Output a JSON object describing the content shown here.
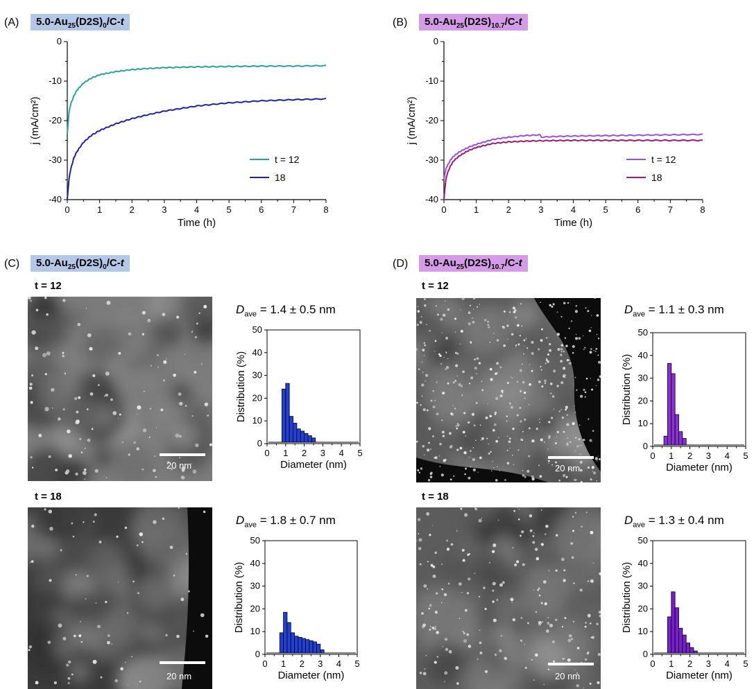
{
  "panels": [
    {
      "letter": "(A)",
      "tag": {
        "prefix": "5.0-Au",
        "sub1": "25",
        "mid": "(D2S)",
        "sub2": "0",
        "suffix": "/C-",
        "ital": "t"
      }
    },
    {
      "letter": "(B)",
      "tag": {
        "prefix": "5.0-Au",
        "sub1": "25",
        "mid": "(D2S)",
        "sub2": "10.7",
        "suffix": "/C-",
        "ital": "t"
      }
    },
    {
      "letter": "(C)",
      "tag": {
        "prefix": "5.0-Au",
        "sub1": "25",
        "mid": "(D2S)",
        "sub2": "0",
        "suffix": "/C-",
        "ital": "t"
      }
    },
    {
      "letter": "(D)",
      "tag": {
        "prefix": "5.0-Au",
        "sub1": "25",
        "mid": "(D2S)",
        "sub2": "10.7",
        "suffix": "/C-",
        "ital": "t"
      }
    }
  ],
  "tem": {
    "t_labels": [
      "t = 12",
      "t = 18"
    ],
    "scale_bar": "20 nm",
    "dave_label": "D",
    "dave_sub": "ave",
    "dave_values": [
      "= 1.4 ± 0.5 nm",
      "= 1.8 ± 0.7 nm",
      "= 1.1 ± 0.3 nm",
      "= 1.3 ± 0.4 nm"
    ]
  },
  "chart_data": [
    {
      "id": "A",
      "type": "line",
      "xlabel": "Time (h)",
      "ylabel": "j (mA/cm²)",
      "xlim": [
        0,
        8
      ],
      "ylim": [
        -40,
        0
      ],
      "xticks": [
        0,
        1,
        2,
        3,
        4,
        5,
        6,
        7,
        8
      ],
      "yticks": [
        0,
        -10,
        -20,
        -30,
        -40
      ],
      "legend_position": "bottom-right",
      "series": [
        {
          "name": "t = 12",
          "color": "#2aa198",
          "x": [
            0,
            0.05,
            0.1,
            0.2,
            0.3,
            0.5,
            0.75,
            1,
            1.5,
            2,
            2.5,
            3,
            4,
            5,
            6,
            7,
            8
          ],
          "y": [
            -23.5,
            -18,
            -16,
            -13.8,
            -12.3,
            -10.5,
            -9.2,
            -8.4,
            -7.6,
            -7.1,
            -6.8,
            -6.6,
            -6.4,
            -6.3,
            -6.2,
            -6.2,
            -6.1
          ]
        },
        {
          "name": "18",
          "color": "#1c22a0",
          "x": [
            0,
            0.05,
            0.1,
            0.2,
            0.3,
            0.5,
            0.75,
            1,
            1.5,
            2,
            2.5,
            3,
            4,
            5,
            6,
            7,
            8
          ],
          "y": [
            -40,
            -35,
            -32.5,
            -29.5,
            -27.8,
            -25.5,
            -23.7,
            -22.5,
            -20.8,
            -19.5,
            -18.5,
            -17.6,
            -16.3,
            -15.5,
            -15,
            -14.7,
            -14.5
          ]
        }
      ]
    },
    {
      "id": "B",
      "type": "line",
      "xlabel": "Time (h)",
      "ylabel": "j (mA/cm²)",
      "xlim": [
        0,
        8
      ],
      "ylim": [
        -40,
        0
      ],
      "xticks": [
        0,
        1,
        2,
        3,
        4,
        5,
        6,
        7,
        8
      ],
      "yticks": [
        0,
        -10,
        -20,
        -30,
        -40
      ],
      "legend_position": "bottom-right",
      "series": [
        {
          "name": "t = 12",
          "color": "#9a4fe0",
          "x": [
            0,
            0.05,
            0.1,
            0.2,
            0.3,
            0.5,
            0.75,
            1,
            1.5,
            2,
            2.5,
            2.99,
            3.01,
            3.5,
            4,
            5,
            6,
            7,
            8
          ],
          "y": [
            -35,
            -32.5,
            -31.5,
            -30,
            -29,
            -27.8,
            -26.8,
            -26,
            -24.8,
            -24.2,
            -23.8,
            -23.6,
            -24.2,
            -24,
            -23.9,
            -23.8,
            -23.7,
            -23.6,
            -23.5
          ]
        },
        {
          "name": "18",
          "color": "#9e1a6e",
          "x": [
            0,
            0.05,
            0.1,
            0.2,
            0.3,
            0.5,
            0.75,
            1,
            1.5,
            2,
            2.5,
            3,
            4,
            5,
            6,
            7,
            8
          ],
          "y": [
            -40,
            -35.5,
            -33.5,
            -31.5,
            -30.2,
            -28.8,
            -27.6,
            -26.8,
            -25.8,
            -25.4,
            -25.2,
            -25.1,
            -25,
            -25,
            -25,
            -25,
            -25
          ]
        }
      ]
    },
    {
      "id": "C12",
      "type": "bar",
      "xlabel": "Diameter (nm)",
      "ylabel": "Distribution (%)",
      "xlim": [
        0,
        5
      ],
      "ylim": [
        0,
        50
      ],
      "xticks": [
        0,
        1,
        2,
        3,
        4,
        5
      ],
      "yticks": [
        0,
        10,
        20,
        30,
        40,
        50
      ],
      "bin_width": 0.2,
      "color": "#2340d6",
      "x": [
        0.9,
        1.1,
        1.3,
        1.5,
        1.7,
        1.9,
        2.1,
        2.3,
        2.5
      ],
      "values": [
        24,
        26.5,
        12,
        9,
        6.5,
        5.5,
        4.5,
        3.5,
        2.5
      ]
    },
    {
      "id": "C18",
      "type": "bar",
      "xlabel": "Diameter (nm)",
      "ylabel": "Distribution (%)",
      "xlim": [
        0,
        5
      ],
      "ylim": [
        0,
        50
      ],
      "xticks": [
        0,
        1,
        2,
        3,
        4,
        5
      ],
      "yticks": [
        0,
        10,
        20,
        30,
        40,
        50
      ],
      "bin_width": 0.2,
      "color": "#2340d6",
      "x": [
        0.9,
        1.1,
        1.3,
        1.5,
        1.7,
        1.9,
        2.1,
        2.3,
        2.5,
        2.7,
        2.9,
        3.1
      ],
      "values": [
        9.5,
        18.5,
        14,
        9.5,
        8,
        7.5,
        7,
        6.5,
        6,
        5.5,
        4.5,
        2
      ]
    },
    {
      "id": "D12",
      "type": "bar",
      "xlabel": "Diameter (nm)",
      "ylabel": "Distribution (%)",
      "xlim": [
        0,
        5
      ],
      "ylim": [
        0,
        50
      ],
      "xticks": [
        0,
        1,
        2,
        3,
        4,
        5
      ],
      "yticks": [
        0,
        10,
        20,
        30,
        40,
        50
      ],
      "bin_width": 0.2,
      "color": "#8b2fd6",
      "x": [
        0.7,
        0.9,
        1.1,
        1.3,
        1.5,
        1.7
      ],
      "values": [
        4.5,
        36.5,
        32,
        14,
        6.5,
        3.5
      ]
    },
    {
      "id": "D18",
      "type": "bar",
      "xlabel": "Diameter (nm)",
      "ylabel": "Distribution (%)",
      "xlim": [
        0,
        5
      ],
      "ylim": [
        0,
        50
      ],
      "xticks": [
        0,
        1,
        2,
        3,
        4,
        5
      ],
      "yticks": [
        0,
        10,
        20,
        30,
        40,
        50
      ],
      "bin_width": 0.2,
      "color": "#7a1fd0",
      "x": [
        0.9,
        1.1,
        1.3,
        1.5,
        1.7,
        1.9,
        2.1,
        2.3
      ],
      "values": [
        16.5,
        27.5,
        20.5,
        11.5,
        8.5,
        5,
        3,
        1.5
      ]
    }
  ]
}
